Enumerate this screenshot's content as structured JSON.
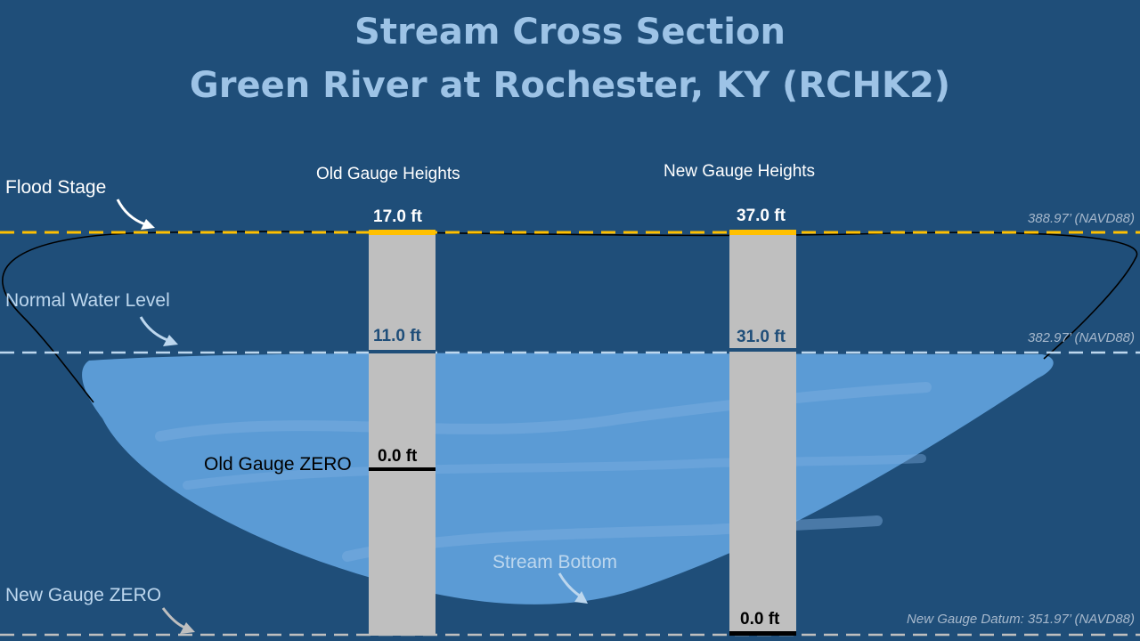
{
  "title": {
    "line1": "Stream Cross Section",
    "line2": "Green River at Rochester, KY (RCHK2)"
  },
  "levels": {
    "flood_stage": {
      "label": "Flood Stage",
      "elevation": "388.97’ (NAVD88)",
      "old_gauge": "17.0 ft",
      "new_gauge": "37.0 ft",
      "line_color": "#ffc000"
    },
    "normal_water": {
      "label": "Normal Water Level",
      "elevation": "382.97’ (NAVD88)",
      "old_gauge": "11.0 ft",
      "new_gauge": "31.0 ft",
      "line_color": "#bdd7ee"
    },
    "old_gauge_zero": {
      "label": "Old Gauge ZERO",
      "old_gauge": "0.0 ft"
    },
    "new_gauge_zero": {
      "label": "New Gauge ZERO",
      "elevation": "New Gauge Datum:  351.97’ (NAVD88)",
      "new_gauge": "0.0 ft"
    }
  },
  "columns": {
    "old": "Old Gauge Heights",
    "new": "New Gauge Heights"
  },
  "stream_bottom": "Stream Bottom",
  "colors": {
    "background": "#1f4e79",
    "water": "#5b9bd5",
    "gauge": "#bfbfbf",
    "title": "#9dc3e6"
  }
}
